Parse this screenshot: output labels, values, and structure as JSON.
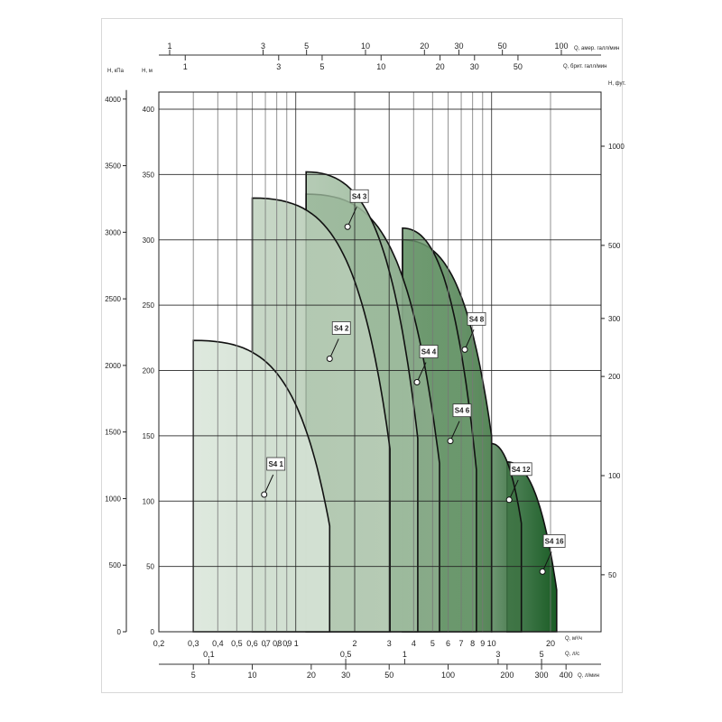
{
  "chart_data": {
    "type": "area",
    "x_scale": "log",
    "xlim": [
      0.2,
      36
    ],
    "ylim": [
      0,
      400
    ],
    "grid": true,
    "axes": {
      "x_main": {
        "label": "Q, м³/ч",
        "ticks": [
          0.2,
          0.3,
          0.4,
          0.5,
          0.6,
          0.7,
          0.8,
          0.9,
          1,
          2,
          3,
          4,
          5,
          6,
          7,
          8,
          9,
          10,
          20
        ],
        "tick_labels": [
          "0,2",
          "0,3",
          "0,4",
          "0,5",
          "0,6",
          "0,7",
          "0,8",
          "0,9",
          "1",
          "2",
          "3",
          "4",
          "5",
          "6",
          "7",
          "8",
          "9",
          "10",
          "20"
        ]
      },
      "x_ls": {
        "label": "Q, л/с",
        "ticks": [
          0.1,
          0.5,
          1,
          3,
          5
        ],
        "tick_labels": [
          "0,1",
          "0,5",
          "1",
          "3",
          "5"
        ]
      },
      "x_lmin": {
        "label": "Q, л/мин",
        "ticks": [
          5,
          10,
          20,
          30,
          50,
          100,
          200,
          300,
          400
        ],
        "tick_labels": [
          "5",
          "10",
          "20",
          "30",
          "50",
          "100",
          "200",
          "300",
          "400"
        ]
      },
      "x_usgpm": {
        "label": "Q, амер. галл/мин",
        "ticks": [
          1,
          3,
          5,
          10,
          20,
          30,
          50,
          100
        ],
        "tick_labels": [
          "1",
          "3",
          "5",
          "10",
          "20",
          "30",
          "50",
          "100"
        ]
      },
      "x_impgpm": {
        "label": "Q, брит. галл/мин",
        "ticks": [
          1,
          3,
          5,
          10,
          20,
          30,
          50
        ],
        "tick_labels": [
          "1",
          "3",
          "5",
          "10",
          "20",
          "30",
          "50"
        ]
      },
      "y_m": {
        "label": "H, м",
        "ticks": [
          0,
          50,
          100,
          150,
          200,
          250,
          300,
          350,
          400
        ]
      },
      "y_kpa": {
        "label": "H, кПа",
        "ticks": [
          0,
          500,
          1000,
          1500,
          2000,
          2500,
          3000,
          3500,
          4000
        ]
      },
      "y_ft": {
        "label": "H, фут.",
        "scale": "log",
        "ticks": [
          50,
          100,
          200,
          300,
          500,
          1000
        ]
      }
    },
    "series": [
      {
        "name": "S4 1",
        "color": "#d3e1d3",
        "q_start": 0.3,
        "h_start": 223,
        "q_end": 1.49,
        "h_end": 81,
        "marker": [
          0.69,
          105
        ]
      },
      {
        "name": "S4 2",
        "color": "#b6cbb5",
        "q_start": 0.6,
        "h_start": 332,
        "q_end": 3.03,
        "h_end": 140,
        "marker": [
          1.49,
          209
        ]
      },
      {
        "name": "S4 3",
        "color": "#9dba9d",
        "q_start": 1.13,
        "h_start": 352,
        "q_end": 4.2,
        "h_end": 148,
        "marker": [
          1.84,
          310
        ]
      },
      {
        "name": "S4 4",
        "color": "#88aa89",
        "q_start": 1.13,
        "h_start": 335,
        "q_end": 5.42,
        "h_end": 129,
        "marker": [
          4.16,
          191
        ]
      },
      {
        "name": "S4 6",
        "color": "#6b986d",
        "q_start": 3.51,
        "h_start": 309,
        "q_end": 8.37,
        "h_end": 124,
        "marker": [
          6.16,
          146
        ]
      },
      {
        "name": "S4 8",
        "color": "#578759",
        "q_start": 3.51,
        "h_start": 300,
        "q_end": 10.0,
        "h_end": 150,
        "marker": [
          7.3,
          216
        ]
      },
      {
        "name": "S4 12",
        "color": "#3e7444",
        "q_start": 10.0,
        "h_start": 144,
        "q_end": 14.2,
        "h_end": 83,
        "marker": [
          12.3,
          101
        ]
      },
      {
        "name": "S4 16",
        "color": "#1a5c25",
        "q_start": 12.0,
        "h_start": 130,
        "q_end": 21.5,
        "h_end": 32,
        "marker": [
          18.2,
          46
        ]
      }
    ]
  }
}
